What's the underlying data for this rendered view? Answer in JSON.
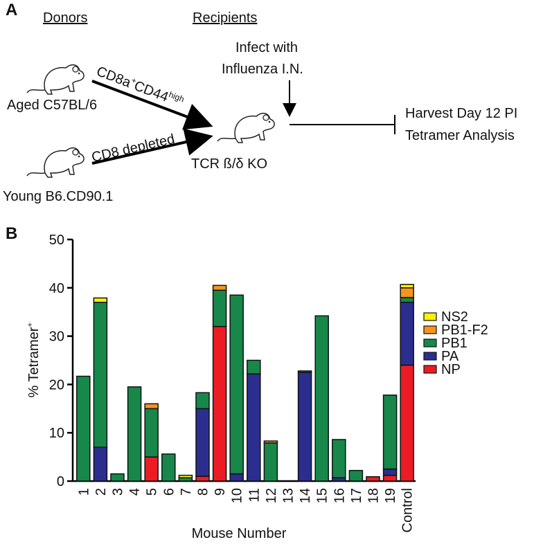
{
  "panel_a": {
    "label": "A",
    "donors_heading": "Donors",
    "recipients_heading": "Recipients",
    "donor_1": "Aged C57BL/6",
    "donor_2": "Young B6.CD90.1",
    "arrow_1_label": [
      "CD8a",
      "+",
      "CD44",
      "high"
    ],
    "arrow_2_label": "CD8 depleted",
    "recipient": "TCR ß/δ KO",
    "infection": [
      "Infect with",
      "Influenza I.N."
    ],
    "outcome": [
      "Harvest Day 12 PI",
      "Tetramer Analysis"
    ]
  },
  "chart_data": {
    "type": "stacked_bar",
    "panel_label": "B",
    "x_label": "Mouse Number",
    "y_label": [
      "% Tetramer",
      "+"
    ],
    "categories": [
      "1",
      "2",
      "3",
      "4",
      "5",
      "6",
      "7",
      "8",
      "9",
      "10",
      "11",
      "12",
      "13",
      "14",
      "15",
      "16",
      "17",
      "18",
      "19",
      "Control"
    ],
    "series": [
      {
        "name": "NP",
        "color": "#ed1c24",
        "values": [
          0,
          0,
          0,
          0,
          5,
          0,
          0,
          1,
          32,
          0,
          0,
          0,
          0,
          0,
          0,
          0,
          0,
          0.9,
          1.2,
          24
        ]
      },
      {
        "name": "PA",
        "color": "#2b2e8f",
        "values": [
          0,
          7,
          0,
          0,
          0,
          0,
          0,
          14,
          0,
          1.5,
          22.2,
          0,
          0,
          22.5,
          0,
          0.7,
          0,
          0,
          1.3,
          13
        ]
      },
      {
        "name": "PB1",
        "color": "#17884a",
        "values": [
          21.7,
          30,
          1.5,
          19.5,
          10,
          5.6,
          0.7,
          3.3,
          7.5,
          37,
          2.8,
          7.9,
          0,
          0.3,
          34.2,
          7.9,
          2.2,
          0,
          15.3,
          1
        ]
      },
      {
        "name": "PB1-F2",
        "color": "#f7941d",
        "values": [
          0,
          0,
          0,
          0,
          1,
          0,
          0,
          0,
          1,
          0,
          0,
          0.4,
          0,
          0,
          0,
          0,
          0,
          0,
          0,
          2
        ]
      },
      {
        "name": "NS2",
        "color": "#fff200",
        "values": [
          0,
          0.9,
          0,
          0,
          0,
          0,
          0.5,
          0,
          0,
          0,
          0,
          0,
          0,
          0,
          0,
          0,
          0,
          0,
          0,
          0.7
        ]
      }
    ],
    "ylim": [
      0,
      50
    ],
    "yticks": [
      0,
      10,
      20,
      30,
      40,
      50
    ],
    "legend": "right"
  }
}
